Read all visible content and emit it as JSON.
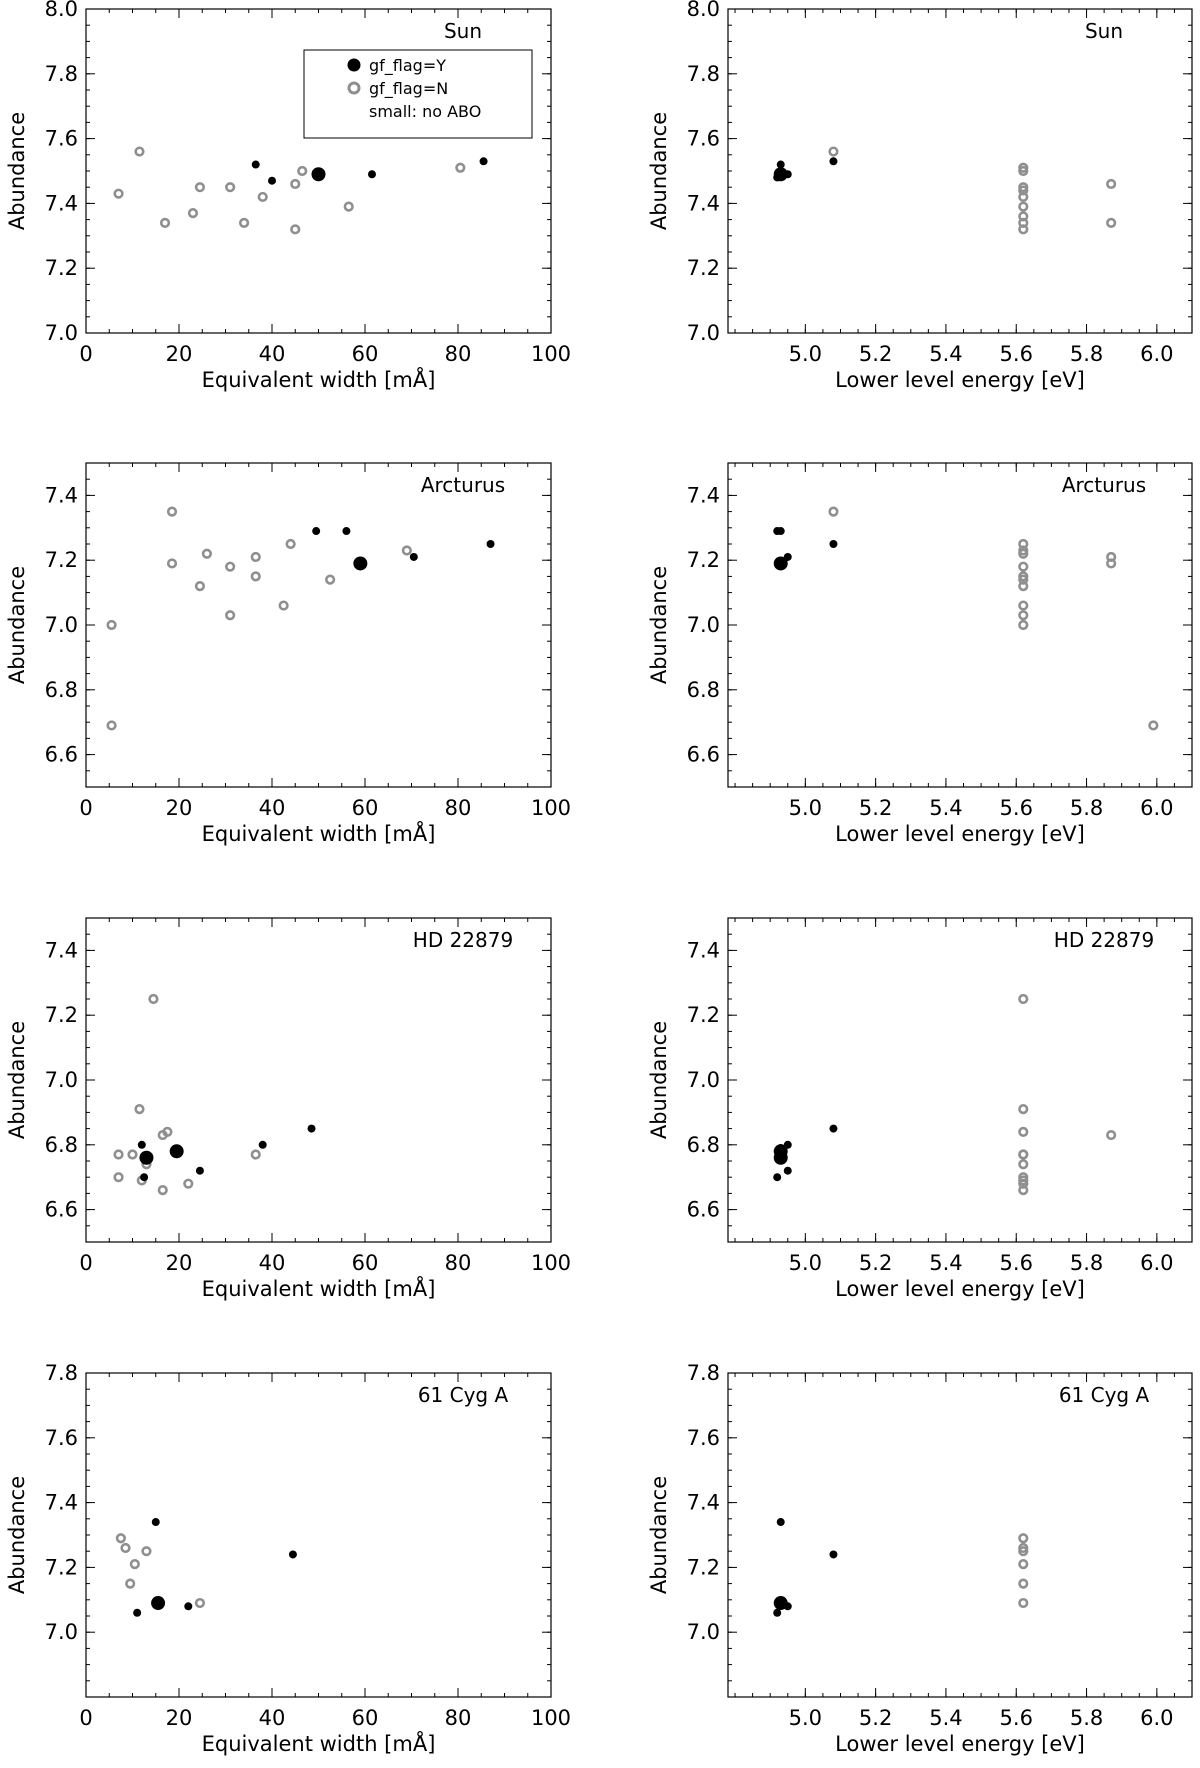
{
  "chart_data": [
    {
      "type": "scatter",
      "star": "Sun",
      "xlabel": "Equivalent width [mÅ]",
      "ylabel": "Abundance",
      "xlim": [
        0,
        100
      ],
      "ylim": [
        7.0,
        8.0
      ],
      "xticks": [
        "0",
        "20",
        "40",
        "60",
        "80",
        "100"
      ],
      "yticks": [
        "7.0",
        "7.2",
        "7.4",
        "7.6",
        "7.8",
        "8.0"
      ],
      "legend": {
        "position": "top-right",
        "entries": [
          "gf_flag=Y",
          "gf_flag=N",
          "small: no ABO"
        ]
      },
      "series": [
        {
          "name": "gf_flag=Y",
          "points": [
            [
              50.0,
              7.49
            ]
          ]
        },
        {
          "name": "gf_flag=Y small",
          "points": [
            [
              36.5,
              7.52
            ],
            [
              40.0,
              7.47
            ],
            [
              61.5,
              7.49
            ],
            [
              85.5,
              7.53
            ]
          ]
        },
        {
          "name": "gf_flag=N",
          "points": [
            [
              7.0,
              7.43
            ],
            [
              11.5,
              7.56
            ],
            [
              17.0,
              7.34
            ],
            [
              23.0,
              7.37
            ],
            [
              24.5,
              7.45
            ],
            [
              31.0,
              7.45
            ],
            [
              34.0,
              7.34
            ],
            [
              38.0,
              7.42
            ],
            [
              45.0,
              7.46
            ],
            [
              45.0,
              7.32
            ],
            [
              46.5,
              7.5
            ],
            [
              56.5,
              7.39
            ],
            [
              80.5,
              7.51
            ]
          ]
        }
      ]
    },
    {
      "type": "scatter",
      "star": "Sun",
      "xlabel": "Lower level energy [eV]",
      "ylabel": "Abundance",
      "xlim": [
        4.78,
        6.1
      ],
      "ylim": [
        7.0,
        8.0
      ],
      "xticks": [
        "5.0",
        "5.2",
        "5.4",
        "5.6",
        "5.8",
        "6.0"
      ],
      "yticks": [
        "7.0",
        "7.2",
        "7.4",
        "7.6",
        "7.8",
        "8.0"
      ],
      "series": [
        {
          "name": "gf_flag=Y",
          "points": [
            [
              4.93,
              7.49
            ]
          ]
        },
        {
          "name": "gf_flag=Y small",
          "points": [
            [
              4.92,
              7.48
            ],
            [
              4.93,
              7.52
            ],
            [
              4.95,
              7.49
            ],
            [
              5.08,
              7.53
            ]
          ]
        },
        {
          "name": "gf_flag=N",
          "points": [
            [
              5.08,
              7.56
            ],
            [
              5.62,
              7.51
            ],
            [
              5.62,
              7.5
            ],
            [
              5.62,
              7.45
            ],
            [
              5.62,
              7.44
            ],
            [
              5.62,
              7.42
            ],
            [
              5.62,
              7.39
            ],
            [
              5.62,
              7.36
            ],
            [
              5.62,
              7.34
            ],
            [
              5.62,
              7.32
            ],
            [
              5.87,
              7.46
            ],
            [
              5.87,
              7.34
            ]
          ]
        }
      ]
    },
    {
      "type": "scatter",
      "star": "Arcturus",
      "xlabel": "Equivalent width [mÅ]",
      "ylabel": "Abundance",
      "xlim": [
        0,
        100
      ],
      "ylim": [
        6.5,
        7.5
      ],
      "xticks": [
        "0",
        "20",
        "40",
        "60",
        "80",
        "100"
      ],
      "yticks": [
        "6.6",
        "6.8",
        "7.0",
        "7.2",
        "7.4"
      ],
      "series": [
        {
          "name": "gf_flag=Y",
          "points": [
            [
              59.0,
              7.19
            ]
          ]
        },
        {
          "name": "gf_flag=Y small",
          "points": [
            [
              49.5,
              7.29
            ],
            [
              56.0,
              7.29
            ],
            [
              70.5,
              7.21
            ],
            [
              87.0,
              7.25
            ]
          ]
        },
        {
          "name": "gf_flag=N",
          "points": [
            [
              5.5,
              7.0
            ],
            [
              5.5,
              6.69
            ],
            [
              18.5,
              7.35
            ],
            [
              18.5,
              7.19
            ],
            [
              24.5,
              7.12
            ],
            [
              26.0,
              7.22
            ],
            [
              31.0,
              7.18
            ],
            [
              31.0,
              7.03
            ],
            [
              36.5,
              7.15
            ],
            [
              36.5,
              7.21
            ],
            [
              42.5,
              7.06
            ],
            [
              44.0,
              7.25
            ],
            [
              52.5,
              7.14
            ],
            [
              69.0,
              7.23
            ]
          ]
        }
      ]
    },
    {
      "type": "scatter",
      "star": "Arcturus",
      "xlabel": "Lower level energy [eV]",
      "ylabel": "Abundance",
      "xlim": [
        4.78,
        6.1
      ],
      "ylim": [
        6.5,
        7.5
      ],
      "xticks": [
        "5.0",
        "5.2",
        "5.4",
        "5.6",
        "5.8",
        "6.0"
      ],
      "yticks": [
        "6.6",
        "6.8",
        "7.0",
        "7.2",
        "7.4"
      ],
      "series": [
        {
          "name": "gf_flag=Y",
          "points": [
            [
              4.93,
              7.19
            ]
          ]
        },
        {
          "name": "gf_flag=Y small",
          "points": [
            [
              4.92,
              7.29
            ],
            [
              4.93,
              7.29
            ],
            [
              4.95,
              7.21
            ],
            [
              5.08,
              7.25
            ]
          ]
        },
        {
          "name": "gf_flag=N",
          "points": [
            [
              5.08,
              7.35
            ],
            [
              5.62,
              7.25
            ],
            [
              5.62,
              7.23
            ],
            [
              5.62,
              7.22
            ],
            [
              5.62,
              7.18
            ],
            [
              5.62,
              7.15
            ],
            [
              5.62,
              7.14
            ],
            [
              5.62,
              7.12
            ],
            [
              5.62,
              7.06
            ],
            [
              5.62,
              7.03
            ],
            [
              5.62,
              7.0
            ],
            [
              5.87,
              7.21
            ],
            [
              5.87,
              7.19
            ],
            [
              5.99,
              6.69
            ]
          ]
        }
      ]
    },
    {
      "type": "scatter",
      "star": "HD 22879",
      "xlabel": "Equivalent width [mÅ]",
      "ylabel": "Abundance",
      "xlim": [
        0,
        100
      ],
      "ylim": [
        6.5,
        7.5
      ],
      "xticks": [
        "0",
        "20",
        "40",
        "60",
        "80",
        "100"
      ],
      "yticks": [
        "6.6",
        "6.8",
        "7.0",
        "7.2",
        "7.4"
      ],
      "series": [
        {
          "name": "gf_flag=Y",
          "points": [
            [
              13.0,
              6.76
            ],
            [
              19.5,
              6.78
            ]
          ]
        },
        {
          "name": "gf_flag=Y small",
          "points": [
            [
              12.0,
              6.8
            ],
            [
              12.5,
              6.7
            ],
            [
              24.5,
              6.72
            ],
            [
              38.0,
              6.8
            ],
            [
              48.5,
              6.85
            ]
          ]
        },
        {
          "name": "gf_flag=N",
          "points": [
            [
              7.0,
              6.7
            ],
            [
              7.0,
              6.77
            ],
            [
              10.0,
              6.77
            ],
            [
              11.5,
              6.91
            ],
            [
              12.0,
              6.69
            ],
            [
              13.0,
              6.74
            ],
            [
              14.5,
              7.25
            ],
            [
              16.5,
              6.83
            ],
            [
              17.5,
              6.84
            ],
            [
              16.5,
              6.66
            ],
            [
              22.0,
              6.68
            ],
            [
              36.5,
              6.77
            ]
          ]
        }
      ]
    },
    {
      "type": "scatter",
      "star": "HD 22879",
      "xlabel": "Lower level energy [eV]",
      "ylabel": "Abundance",
      "xlim": [
        4.78,
        6.1
      ],
      "ylim": [
        6.5,
        7.5
      ],
      "xticks": [
        "5.0",
        "5.2",
        "5.4",
        "5.6",
        "5.8",
        "6.0"
      ],
      "yticks": [
        "6.6",
        "6.8",
        "7.0",
        "7.2",
        "7.4"
      ],
      "series": [
        {
          "name": "gf_flag=Y",
          "points": [
            [
              4.93,
              6.76
            ],
            [
              4.93,
              6.78
            ]
          ]
        },
        {
          "name": "gf_flag=Y small",
          "points": [
            [
              4.92,
              6.7
            ],
            [
              4.93,
              6.79
            ],
            [
              4.95,
              6.72
            ],
            [
              4.95,
              6.8
            ],
            [
              5.08,
              6.85
            ]
          ]
        },
        {
          "name": "gf_flag=N",
          "points": [
            [
              5.62,
              7.25
            ],
            [
              5.62,
              6.91
            ],
            [
              5.62,
              6.84
            ],
            [
              5.62,
              6.77
            ],
            [
              5.62,
              6.77
            ],
            [
              5.62,
              6.74
            ],
            [
              5.62,
              6.7
            ],
            [
              5.62,
              6.69
            ],
            [
              5.62,
              6.68
            ],
            [
              5.62,
              6.66
            ],
            [
              5.87,
              6.83
            ]
          ]
        }
      ]
    },
    {
      "type": "scatter",
      "star": "61 Cyg A",
      "xlabel": "Equivalent width [mÅ]",
      "ylabel": "Abundance",
      "xlim": [
        0,
        100
      ],
      "ylim": [
        6.8,
        7.8
      ],
      "xticks": [
        "0",
        "20",
        "40",
        "60",
        "80",
        "100"
      ],
      "yticks": [
        "7.0",
        "7.2",
        "7.4",
        "7.6",
        "7.8"
      ],
      "series": [
        {
          "name": "gf_flag=Y",
          "points": [
            [
              15.5,
              7.09
            ]
          ]
        },
        {
          "name": "gf_flag=Y small",
          "points": [
            [
              11.0,
              7.06
            ],
            [
              15.0,
              7.34
            ],
            [
              22.0,
              7.08
            ],
            [
              44.5,
              7.24
            ]
          ]
        },
        {
          "name": "gf_flag=N",
          "points": [
            [
              7.5,
              7.29
            ],
            [
              8.5,
              7.26
            ],
            [
              9.5,
              7.15
            ],
            [
              10.5,
              7.21
            ],
            [
              13.0,
              7.25
            ],
            [
              24.5,
              7.09
            ]
          ]
        }
      ]
    },
    {
      "type": "scatter",
      "star": "61 Cyg A",
      "xlabel": "Lower level energy [eV]",
      "ylabel": "Abundance",
      "xlim": [
        4.78,
        6.1
      ],
      "ylim": [
        6.8,
        7.8
      ],
      "xticks": [
        "5.0",
        "5.2",
        "5.4",
        "5.6",
        "5.8",
        "6.0"
      ],
      "yticks": [
        "7.0",
        "7.2",
        "7.4",
        "7.6",
        "7.8"
      ],
      "series": [
        {
          "name": "gf_flag=Y",
          "points": [
            [
              4.93,
              7.09
            ]
          ]
        },
        {
          "name": "gf_flag=Y small",
          "points": [
            [
              4.92,
              7.06
            ],
            [
              4.93,
              7.34
            ],
            [
              4.95,
              7.08
            ],
            [
              5.08,
              7.24
            ]
          ]
        },
        {
          "name": "gf_flag=N",
          "points": [
            [
              5.62,
              7.29
            ],
            [
              5.62,
              7.26
            ],
            [
              5.62,
              7.25
            ],
            [
              5.62,
              7.21
            ],
            [
              5.62,
              7.15
            ],
            [
              5.62,
              7.09
            ]
          ]
        }
      ]
    }
  ]
}
